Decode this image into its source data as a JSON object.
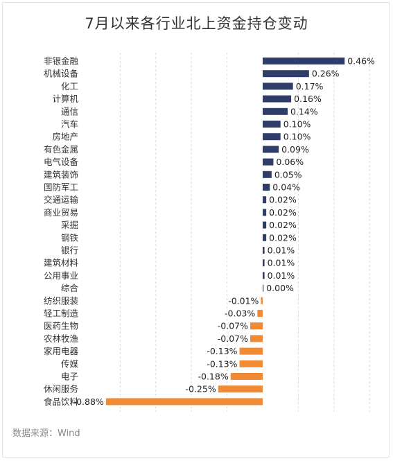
{
  "title": "7月以来各行业北上资金持仓变动",
  "source": "数据来源：Wind",
  "colors": {
    "positive": "#2f3d6b",
    "negative": "#f08a35",
    "grid": "#d8d8d8"
  },
  "chart_data": {
    "type": "bar",
    "orientation": "horizontal",
    "title": "7月以来各行业北上资金持仓变动",
    "unit": "%",
    "grid": true,
    "categories": [
      "非银金融",
      "机械设备",
      "化工",
      "计算机",
      "通信",
      "汽车",
      "房地产",
      "有色金属",
      "电气设备",
      "建筑装饰",
      "国防军工",
      "交通运输",
      "商业贸易",
      "采掘",
      "钢铁",
      "银行",
      "建筑材料",
      "公用事业",
      "综合",
      "纺织服装",
      "轻工制造",
      "医药生物",
      "农林牧渔",
      "家用电器",
      "传媒",
      "电子",
      "休闲服务",
      "食品饮料"
    ],
    "values": [
      0.46,
      0.26,
      0.17,
      0.16,
      0.14,
      0.1,
      0.1,
      0.09,
      0.06,
      0.05,
      0.04,
      0.02,
      0.02,
      0.02,
      0.02,
      0.01,
      0.01,
      0.01,
      0.0,
      -0.01,
      -0.03,
      -0.07,
      -0.07,
      -0.13,
      -0.13,
      -0.18,
      -0.25,
      -0.88
    ],
    "labels": [
      "0.46%",
      "0.26%",
      "0.17%",
      "0.16%",
      "0.14%",
      "0.10%",
      "0.10%",
      "0.09%",
      "0.06%",
      "0.05%",
      "0.04%",
      "0.02%",
      "0.02%",
      "0.02%",
      "0.02%",
      "0.01%",
      "0.01%",
      "0.01%",
      "0.00%",
      "-0.01%",
      "-0.03%",
      "-0.07%",
      "-0.07%",
      "-0.13%",
      "-0.13%",
      "-0.18%",
      "-0.25%",
      "-0.88%"
    ],
    "xlim": [
      -0.9,
      0.6
    ]
  }
}
